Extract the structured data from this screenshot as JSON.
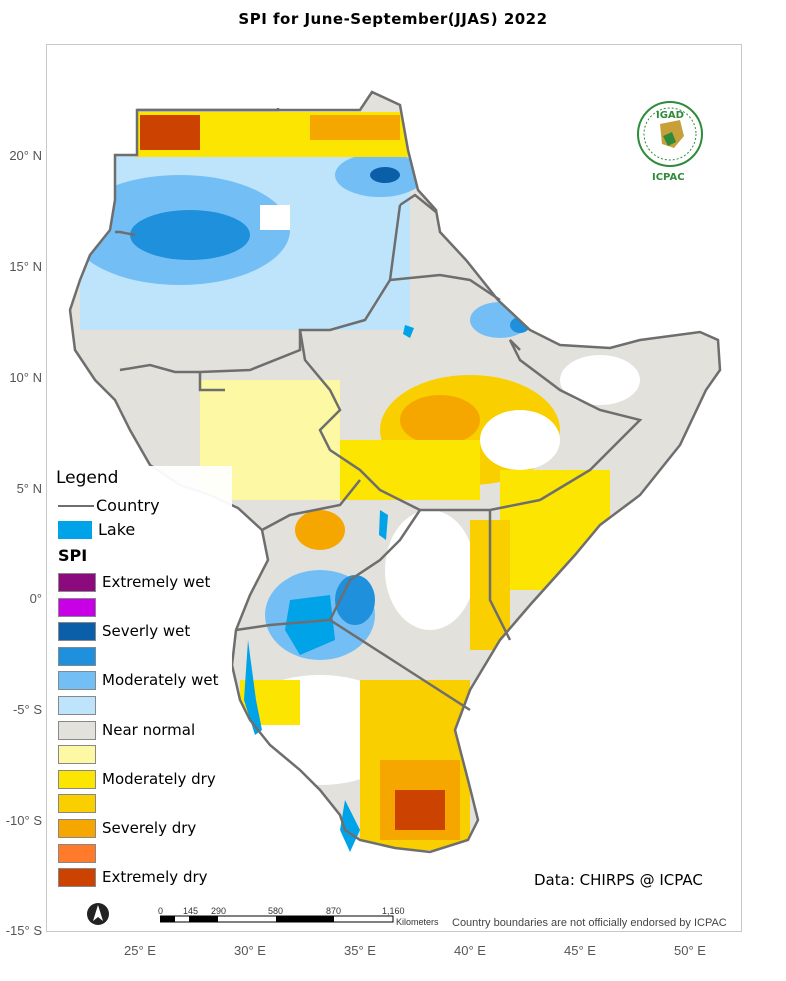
{
  "title": "SPI   for  June-September(JJAS)  2022",
  "legend": {
    "title": "Legend",
    "country_label": "Country",
    "lake_label": "Lake",
    "spi_heading": "SPI",
    "classes": [
      {
        "label": "Extremely wet",
        "color": "#8b0a7d"
      },
      {
        "label": "",
        "color": "#c800e6"
      },
      {
        "label": "Severly wet",
        "color": "#0a5fa8"
      },
      {
        "label": "",
        "color": "#1e90dc"
      },
      {
        "label": "Moderately wet",
        "color": "#73bff5"
      },
      {
        "label": "",
        "color": "#bde4fb"
      },
      {
        "label": "Near normal",
        "color": "#e3e1dc"
      },
      {
        "label": "",
        "color": "#fcf8a4"
      },
      {
        "label": "Moderately dry",
        "color": "#fce500"
      },
      {
        "label": "",
        "color": "#f9cf00"
      },
      {
        "label": "Severely dry",
        "color": "#f5a700"
      },
      {
        "label": "",
        "color": "#ff7b2b"
      },
      {
        "label": "Extremely dry",
        "color": "#cc4200"
      }
    ]
  },
  "lat_labels": [
    "20° N",
    "15° N",
    "10° N",
    "5° N",
    "0°",
    "-5° S",
    "-10° S",
    "-15° S"
  ],
  "lon_labels": [
    "25° E",
    "30° E",
    "35° E",
    "40° E",
    "45° E",
    "50° E"
  ],
  "data_credit": "Data: CHIRPS @ ICPAC",
  "disclaimer": "Country boundaries are not officially endorsed by ICPAC",
  "scale": {
    "ticks": [
      "0",
      "145",
      "290",
      "580",
      "870",
      "1,160"
    ],
    "unit": "Kilometers"
  },
  "logo": {
    "top_text": "IGAD",
    "bottom_text": "ICPAC"
  },
  "north_arrow": "N"
}
